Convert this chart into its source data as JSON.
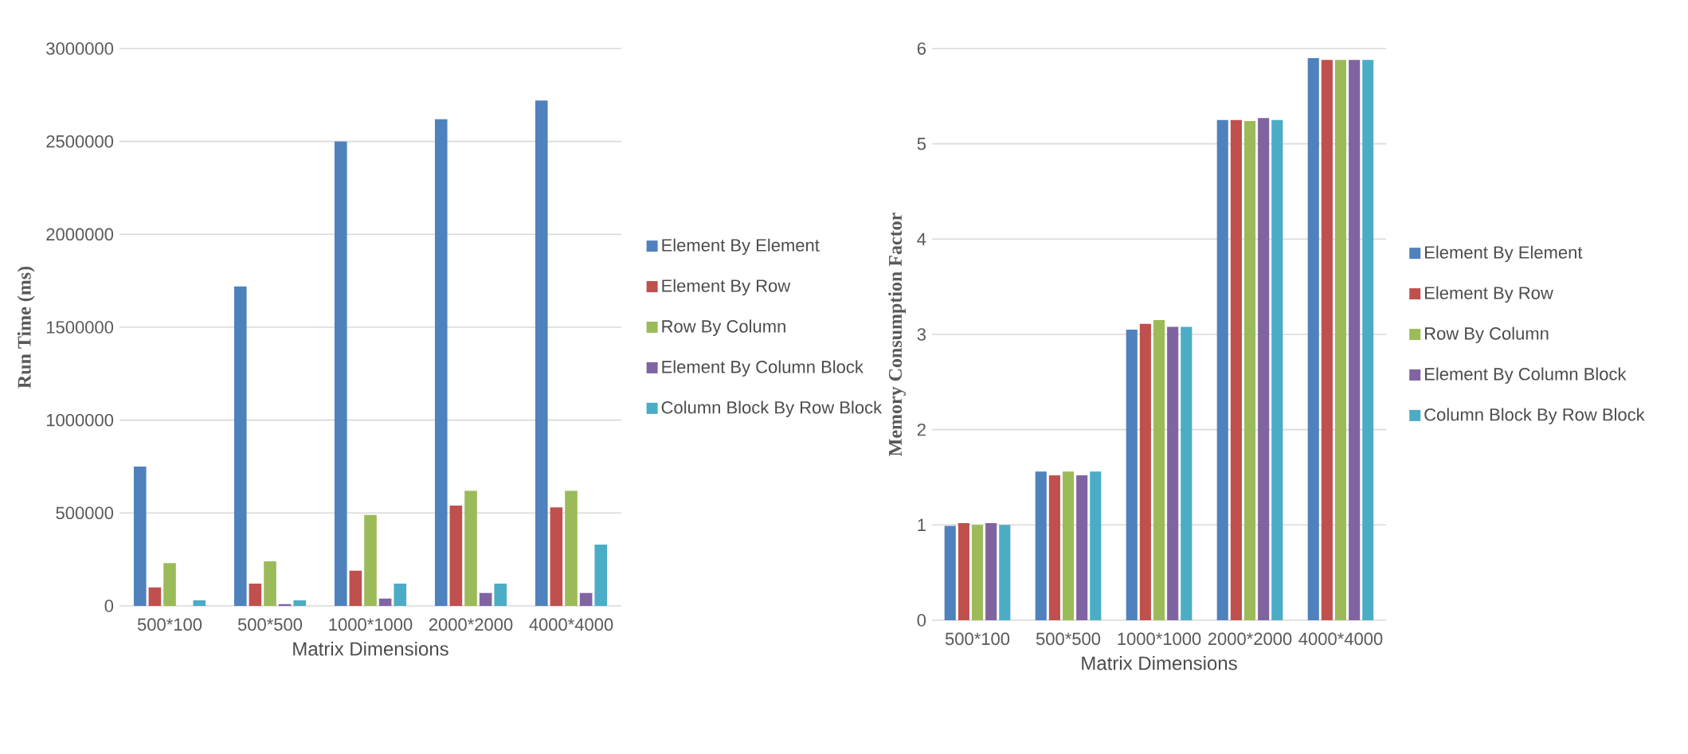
{
  "chart_data": [
    {
      "type": "bar",
      "xlabel": "Matrix Dimensions",
      "ylabel": "Run Time (ms)",
      "categories": [
        "500*100",
        "500*500",
        "1000*1000",
        "2000*2000",
        "4000*4000"
      ],
      "ylim": [
        0,
        3000000
      ],
      "yticks": [
        0,
        500000,
        1000000,
        1500000,
        2000000,
        2500000,
        3000000
      ],
      "grid": "y",
      "legend": "right",
      "series": [
        {
          "name": "Element By Element",
          "color": "#4f81bd",
          "values": [
            750000,
            1720000,
            2500000,
            2620000,
            2720000
          ]
        },
        {
          "name": "Element By Row",
          "color": "#c0504d",
          "values": [
            100000,
            120000,
            190000,
            540000,
            530000
          ]
        },
        {
          "name": "Row By Column",
          "color": "#9bbb59",
          "values": [
            230000,
            240000,
            490000,
            620000,
            620000
          ]
        },
        {
          "name": "Element By Column Block",
          "color": "#8064a2",
          "values": [
            0,
            10000,
            40000,
            70000,
            70000
          ]
        },
        {
          "name": "Column Block By Row Block",
          "color": "#4bacc6",
          "values": [
            30000,
            30000,
            120000,
            120000,
            330000
          ]
        }
      ]
    },
    {
      "type": "bar",
      "xlabel": "Matrix Dimensions",
      "ylabel": "Memory Consumption Factor",
      "categories": [
        "500*100",
        "500*500",
        "1000*1000",
        "2000*2000",
        "4000*4000"
      ],
      "ylim": [
        0,
        6
      ],
      "yticks": [
        0,
        1,
        2,
        3,
        4,
        5,
        6
      ],
      "grid": "y",
      "legend": "right",
      "series": [
        {
          "name": "Element By Element",
          "color": "#4f81bd",
          "values": [
            0.99,
            1.56,
            3.05,
            5.25,
            5.9
          ]
        },
        {
          "name": "Element By Row",
          "color": "#c0504d",
          "values": [
            1.02,
            1.52,
            3.11,
            5.25,
            5.88
          ]
        },
        {
          "name": "Row By Column",
          "color": "#9bbb59",
          "values": [
            1.0,
            1.56,
            3.15,
            5.24,
            5.88
          ]
        },
        {
          "name": "Element By Column Block",
          "color": "#8064a2",
          "values": [
            1.02,
            1.52,
            3.08,
            5.27,
            5.88
          ]
        },
        {
          "name": "Column Block By Row Block",
          "color": "#4bacc6",
          "values": [
            1.0,
            1.56,
            3.08,
            5.25,
            5.88
          ]
        }
      ]
    }
  ]
}
